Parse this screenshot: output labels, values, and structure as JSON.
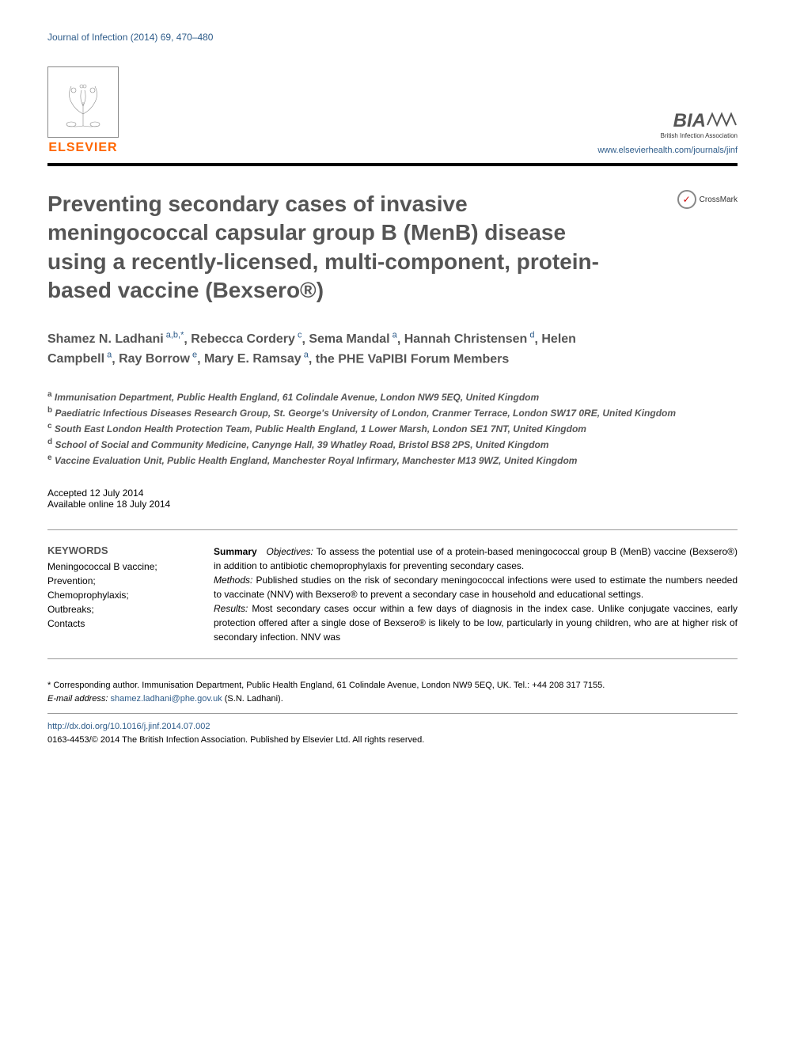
{
  "journal": {
    "citation": "Journal of Infection (2014) 69, 470–480",
    "url": "www.elsevierhealth.com/journals/jinf"
  },
  "publisher": {
    "name": "ELSEVIER",
    "org": "BIA",
    "org_sub": "British Infection Association"
  },
  "crossmark": "CrossMark",
  "title": "Preventing secondary cases of invasive meningococcal capsular group B (MenB) disease using a recently-licensed, multi-component, protein-based vaccine (Bexsero®)",
  "authors": [
    {
      "name": "Shamez N. Ladhani",
      "affil": "a,b,*"
    },
    {
      "name": "Rebecca Cordery",
      "affil": "c"
    },
    {
      "name": "Sema Mandal",
      "affil": "a"
    },
    {
      "name": "Hannah Christensen",
      "affil": "d"
    },
    {
      "name": "Helen Campbell",
      "affil": "a"
    },
    {
      "name": "Ray Borrow",
      "affil": "e"
    },
    {
      "name": "Mary E. Ramsay",
      "affil": "a"
    },
    {
      "name": "the PHE VaPIBI Forum Members",
      "affil": ""
    }
  ],
  "affiliations": [
    {
      "key": "a",
      "text": "Immunisation Department, Public Health England, 61 Colindale Avenue, London NW9 5EQ, United Kingdom"
    },
    {
      "key": "b",
      "text": "Paediatric Infectious Diseases Research Group, St. George's University of London, Cranmer Terrace, London SW17 0RE, United Kingdom"
    },
    {
      "key": "c",
      "text": "South East London Health Protection Team, Public Health England, 1 Lower Marsh, London SE1 7NT, United Kingdom"
    },
    {
      "key": "d",
      "text": "School of Social and Community Medicine, Canynge Hall, 39 Whatley Road, Bristol BS8 2PS, United Kingdom"
    },
    {
      "key": "e",
      "text": "Vaccine Evaluation Unit, Public Health England, Manchester Royal Infirmary, Manchester M13 9WZ, United Kingdom"
    }
  ],
  "dates": {
    "accepted": "Accepted 12 July 2014",
    "online": "Available online 18 July 2014"
  },
  "keywords": {
    "heading": "KEYWORDS",
    "items": [
      "Meningococcal B vaccine;",
      "Prevention;",
      "Chemoprophylaxis;",
      "Outbreaks;",
      "Contacts"
    ]
  },
  "summary": {
    "label": "Summary",
    "objectives_label": "Objectives:",
    "objectives": "To assess the potential use of a protein-based meningococcal group B (MenB) vaccine (Bexsero®) in addition to antibiotic chemoprophylaxis for preventing secondary cases.",
    "methods_label": "Methods:",
    "methods": "Published studies on the risk of secondary meningococcal infections were used to estimate the numbers needed to vaccinate (NNV) with Bexsero® to prevent a secondary case in household and educational settings.",
    "results_label": "Results:",
    "results": "Most secondary cases occur within a few days of diagnosis in the index case. Unlike conjugate vaccines, early protection offered after a single dose of Bexsero® is likely to be low, particularly in young children, who are at higher risk of secondary infection. NNV was"
  },
  "footer": {
    "corresp": "* Corresponding author. Immunisation Department, Public Health England, 61 Colindale Avenue, London NW9 5EQ, UK. Tel.: +44 208 317 7155.",
    "email_label": "E-mail address:",
    "email": "shamez.ladhani@phe.gov.uk",
    "email_name": "(S.N. Ladhani).",
    "doi": "http://dx.doi.org/10.1016/j.jinf.2014.07.002",
    "copyright": "0163-4453/© 2014 The British Infection Association. Published by Elsevier Ltd. All rights reserved."
  },
  "colors": {
    "link": "#2e5c8a",
    "elsevier_orange": "#ff6600",
    "title_gray": "#555555",
    "text": "#000000"
  }
}
